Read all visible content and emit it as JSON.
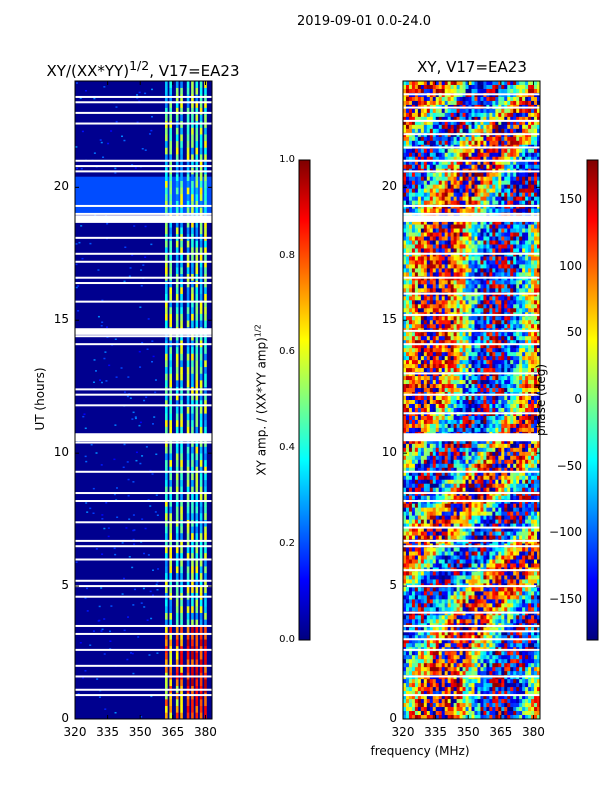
{
  "suptitle": "2019-09-01 0.0-24.0",
  "colors": {
    "jet": [
      "#00007f",
      "#0000ff",
      "#007fff",
      "#00ffff",
      "#7fff7f",
      "#ffff00",
      "#ff7f00",
      "#ff0000",
      "#7f0000"
    ],
    "amp_background": "#00008f"
  },
  "chart_data": [
    {
      "type": "heatmap",
      "title_html": "XY/(XX*YY)<sup>1/2</sup>, V17=EA23",
      "xlabel": "",
      "ylabel": "UT (hours)",
      "xlim": [
        320,
        383
      ],
      "ylim": [
        0,
        24
      ],
      "xticks": [
        320,
        335,
        350,
        365,
        380
      ],
      "yticks": [
        0,
        5,
        10,
        15,
        20
      ],
      "description_values": "normalized XY amplitude, mostly near 0 with bright channels around 362-381 MHz",
      "colorbar": {
        "label": "XY amp. / (XX*YY amp)",
        "label_sup": "1/2",
        "range": [
          0.0,
          1.0
        ],
        "ticks": [
          "0.0",
          "0.2",
          "0.4",
          "0.6",
          "0.8",
          "1.0"
        ]
      },
      "bright_channels_mhz": [
        362,
        364,
        367,
        369,
        372,
        374,
        376,
        378,
        380
      ],
      "flagged_hours": [
        0.9,
        1.1,
        1.6,
        2.0,
        2.6,
        3.2,
        3.5,
        4.6,
        5.0,
        5.2,
        6.0,
        6.5,
        6.7,
        7.4,
        8.2,
        8.5,
        9.3,
        10.4,
        10.5,
        10.6,
        11.8,
        12.2,
        12.4,
        14.1,
        14.4,
        14.6,
        15.7,
        16.4,
        16.6,
        17.2,
        17.5,
        18.1,
        18.7,
        18.8,
        19.0,
        19.3,
        20.6,
        20.8,
        21.0,
        22.4,
        22.8,
        23.2,
        23.4
      ]
    },
    {
      "type": "heatmap",
      "title": "XY, V17=EA23",
      "xlabel": "frequency (MHz)",
      "ylabel": "",
      "xlim": [
        320,
        383
      ],
      "ylim": [
        0,
        24
      ],
      "xticks": [
        320,
        335,
        350,
        365,
        380
      ],
      "yticks": [
        0,
        5,
        10,
        15,
        20
      ],
      "description_values": "XY phase in degrees, spanning -180 to 180 with noisy structure",
      "colorbar": {
        "label": "phase (deg)",
        "range": [
          -180,
          180
        ],
        "ticks": [
          "150",
          "100",
          "50",
          "0",
          "−50",
          "−100",
          "−150"
        ]
      },
      "flagged_hours": [
        0.9,
        1.6,
        2.6,
        3.0,
        3.3,
        3.5,
        4.0,
        5.0,
        5.6,
        6.5,
        6.7,
        7.2,
        8.2,
        8.5,
        9.3,
        10.5,
        11.5,
        12.2,
        13.0,
        14.1,
        14.6,
        15.2,
        16.0,
        16.6,
        17.5,
        18.8,
        19.0,
        19.3,
        20.6,
        21.0,
        21.5,
        22.0,
        22.5,
        23.0,
        23.5
      ]
    }
  ]
}
